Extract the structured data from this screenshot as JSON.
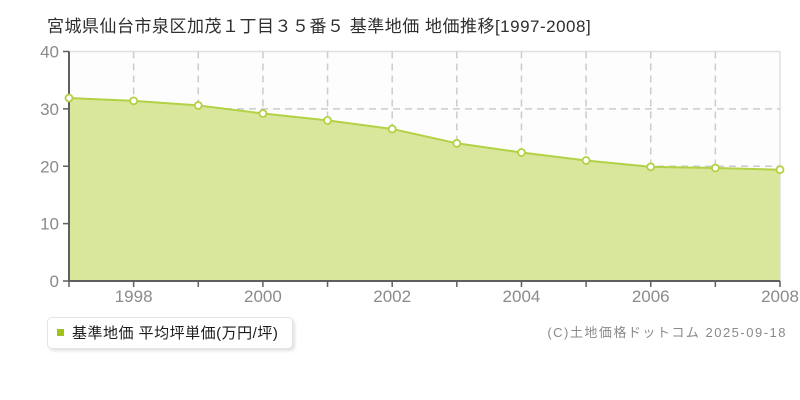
{
  "page": {
    "title": "宮城県仙台市泉区加茂１丁目３５番５ 基準地価 地価推移[1997-2008]",
    "copyright": "(C)土地価格ドットコム 2025-09-18"
  },
  "legend": {
    "label": "基準地価 平均坪単価(万円/坪)",
    "marker_color": "#9fc31b"
  },
  "chart_data": {
    "type": "area",
    "title": "宮城県仙台市泉区加茂１丁目３５番５ 基準地価 地価推移[1997-2008]",
    "series_name": "基準地価 平均坪単価(万円/坪)",
    "unit": "万円/坪",
    "x": [
      1997,
      1998,
      1999,
      2000,
      2001,
      2002,
      2003,
      2004,
      2005,
      2006,
      2007,
      2008
    ],
    "values": [
      31.9,
      31.4,
      30.6,
      29.2,
      28.0,
      26.5,
      24.0,
      22.4,
      21.0,
      19.9,
      19.7,
      19.4
    ],
    "xlabel": "",
    "ylabel": "",
    "ylim": [
      0,
      40
    ],
    "yticks": [
      0,
      10,
      20,
      30,
      40
    ],
    "xtick_labels": [
      1998,
      2000,
      2002,
      2004,
      2006,
      2008
    ],
    "grid": true,
    "legend_position": "bottom-left",
    "colors": {
      "line": "#b2d145",
      "fill": "#d9e79c",
      "marker_fill": "#ffffff",
      "marker_stroke": "#b2d145",
      "axis": "#5f5f5f",
      "grid": "#cccccc",
      "plot_border": "#e0e0e0",
      "tick_label": "#8b8b8b",
      "plot_background": "#fdfdfd"
    }
  }
}
